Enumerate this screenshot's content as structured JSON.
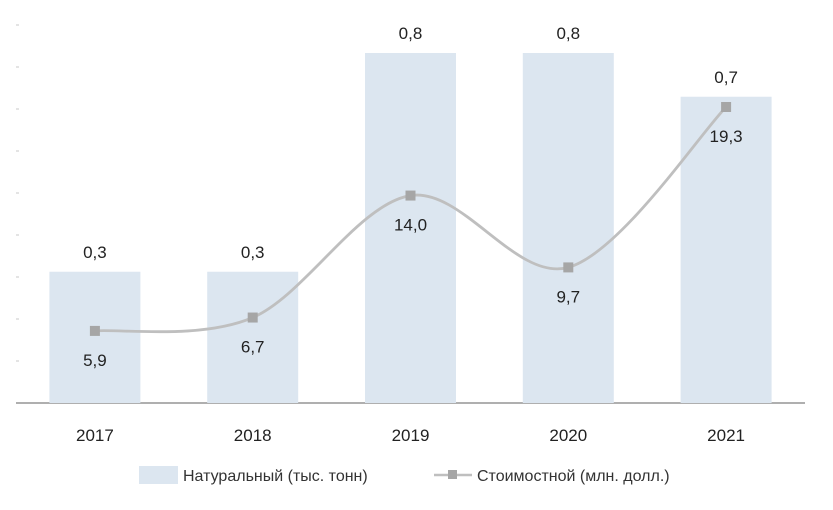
{
  "chart_data": {
    "type": "bar+line",
    "categories": [
      "2017",
      "2018",
      "2019",
      "2020",
      "2021"
    ],
    "series": [
      {
        "name": "Натуральный (тыс. тонн)",
        "type": "bar",
        "values": [
          0.3,
          0.3,
          0.8,
          0.8,
          0.7
        ],
        "labels": [
          "0,3",
          "0,3",
          "0,8",
          "0,8",
          "0,7"
        ],
        "color": "#dce6f0"
      },
      {
        "name": "Стоимостной (млн. долл.)",
        "type": "line",
        "values": [
          5.9,
          6.7,
          14.0,
          9.7,
          19.3
        ],
        "labels": [
          "5,9",
          "6,7",
          "14,0",
          "9,7",
          "19,3"
        ],
        "color": "#bfbfbf"
      }
    ],
    "legend_position": "bottom",
    "grid": false
  }
}
